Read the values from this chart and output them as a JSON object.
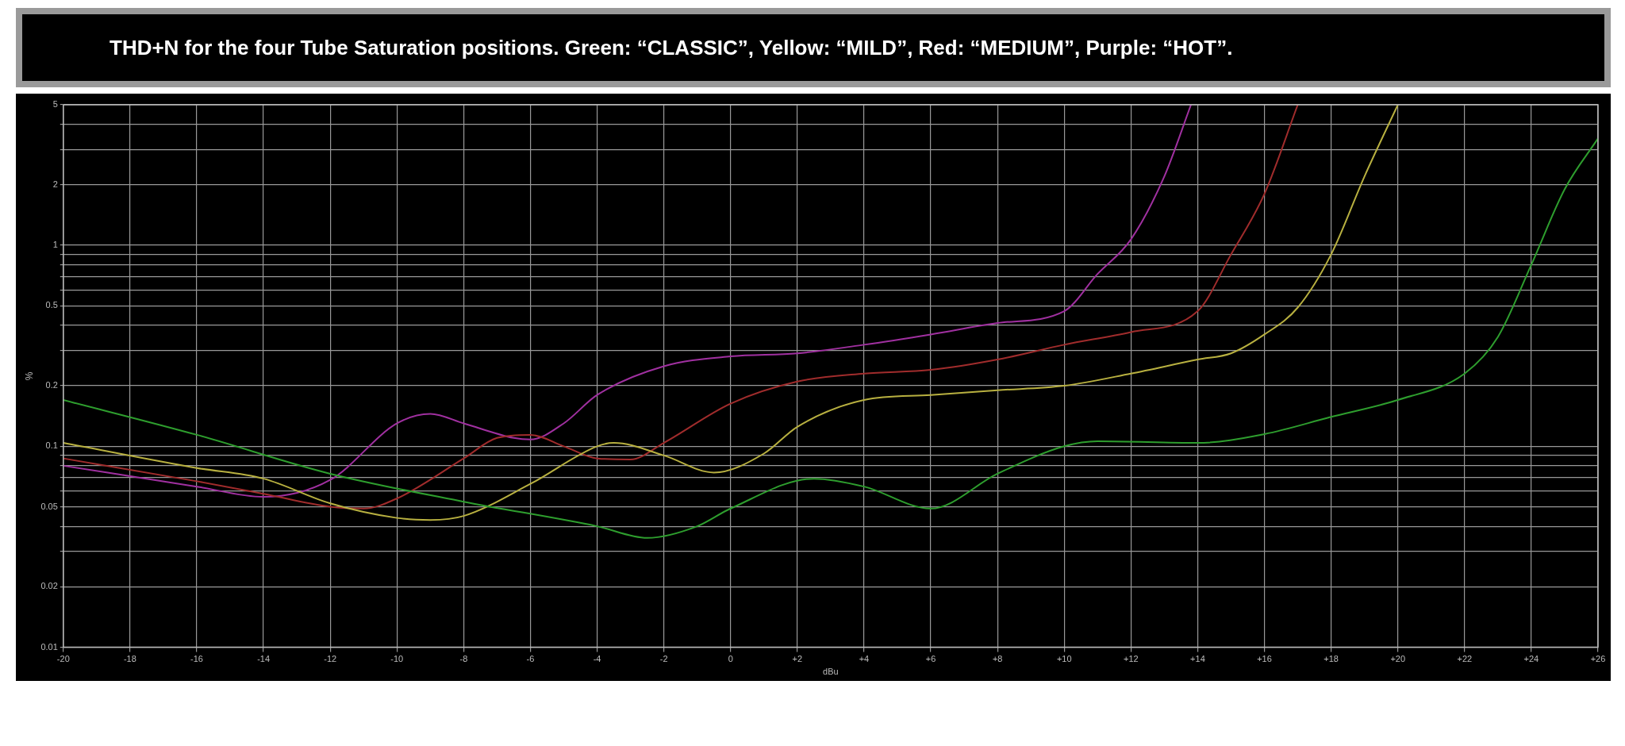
{
  "chart_data": {
    "type": "line",
    "title": "THD+N for the four Tube Saturation positions. Green: “CLASSIC”, Yellow: “MILD”, Red: “MEDIUM”, Purple: “HOT”.",
    "xlabel": "dBu",
    "ylabel": "%",
    "log": "y",
    "grid": true,
    "legend": false,
    "marker": "none",
    "line_style": "solid",
    "xlim": [
      -20,
      26
    ],
    "xticks": [
      -20,
      -18,
      -16,
      -14,
      -12,
      -10,
      -8,
      -6,
      -4,
      -2,
      0,
      {
        "value": 2,
        "label": "+2"
      },
      {
        "value": 4,
        "label": "+4"
      },
      {
        "value": 6,
        "label": "+6"
      },
      {
        "value": 8,
        "label": "+8"
      },
      {
        "value": 10,
        "label": "+10"
      },
      {
        "value": 12,
        "label": "+12"
      },
      {
        "value": 14,
        "label": "+14"
      },
      {
        "value": 16,
        "label": "+16"
      },
      {
        "value": 18,
        "label": "+18"
      },
      {
        "value": 20,
        "label": "+20"
      },
      {
        "value": 22,
        "label": "+22"
      },
      {
        "value": 24,
        "label": "+24"
      },
      {
        "value": 26,
        "label": "+26"
      }
    ],
    "ylim": [
      0.01,
      5
    ],
    "yticks": [
      0.01,
      0.02,
      {
        "value": 0.03,
        "label": null
      },
      {
        "value": 0.04,
        "label": null
      },
      0.05,
      {
        "value": 0.06,
        "label": null
      },
      {
        "value": 0.07,
        "label": null
      },
      {
        "value": 0.08,
        "label": null
      },
      {
        "value": 0.09,
        "label": null
      },
      0.1,
      0.2,
      {
        "value": 0.3,
        "label": null
      },
      {
        "value": 0.4,
        "label": null
      },
      0.5,
      {
        "value": 0.6,
        "label": null
      },
      {
        "value": 0.7,
        "label": null
      },
      {
        "value": 0.8,
        "label": null
      },
      {
        "value": 0.9,
        "label": null
      },
      1,
      2,
      {
        "value": 3,
        "label": null
      },
      {
        "value": 4,
        "label": null
      },
      5
    ],
    "series": [
      {
        "color": "#2e9e2e",
        "x": [
          -20,
          -16,
          -12,
          -8,
          -4,
          -2.5,
          -1,
          0,
          2.5,
          4,
          6,
          8,
          10,
          11,
          14,
          16,
          18,
          20,
          22,
          23,
          24,
          25,
          26
        ],
        "values": [
          0.17,
          0.114,
          0.073,
          0.053,
          0.04,
          0.035,
          0.04,
          0.049,
          0.069,
          0.063,
          0.049,
          0.073,
          0.1,
          0.106,
          0.104,
          0.115,
          0.14,
          0.17,
          0.23,
          0.35,
          0.8,
          1.9,
          3.4
        ]
      },
      {
        "color": "#b8b040",
        "x": [
          -20,
          -16,
          -14,
          -12,
          -10,
          -9,
          -8,
          -6,
          -4,
          -3.5,
          -2,
          -0.5,
          1,
          2,
          4,
          6,
          8,
          10,
          12,
          14,
          15,
          16,
          17,
          18,
          19,
          20
        ],
        "values": [
          0.104,
          0.078,
          0.069,
          0.052,
          0.044,
          0.043,
          0.045,
          0.065,
          0.1,
          0.104,
          0.09,
          0.074,
          0.092,
          0.125,
          0.17,
          0.18,
          0.19,
          0.2,
          0.23,
          0.27,
          0.29,
          0.36,
          0.49,
          0.9,
          2.2,
          5
        ]
      },
      {
        "color": "#a02c2c",
        "x": [
          -20,
          -16,
          -14,
          -12,
          -11,
          -10,
          -8,
          -7,
          -6,
          -5,
          -4,
          -3,
          -2,
          0,
          2,
          4,
          6,
          8,
          10,
          12,
          14,
          15,
          16,
          17
        ],
        "values": [
          0.087,
          0.067,
          0.058,
          0.05,
          0.049,
          0.055,
          0.087,
          0.11,
          0.114,
          0.1,
          0.087,
          0.086,
          0.104,
          0.163,
          0.21,
          0.23,
          0.24,
          0.27,
          0.32,
          0.37,
          0.47,
          0.9,
          1.8,
          5
        ]
      },
      {
        "color": "#a030a0",
        "x": [
          -20,
          -16,
          -14,
          -12,
          -10,
          -9,
          -8,
          -6.5,
          -6,
          -5,
          -4,
          -2,
          0,
          2,
          4,
          6,
          8,
          10,
          11,
          12,
          13,
          13.8
        ],
        "values": [
          0.08,
          0.063,
          0.056,
          0.068,
          0.13,
          0.145,
          0.13,
          0.11,
          0.108,
          0.13,
          0.18,
          0.25,
          0.28,
          0.29,
          0.32,
          0.36,
          0.41,
          0.47,
          0.72,
          1.07,
          2.2,
          5
        ]
      }
    ]
  }
}
